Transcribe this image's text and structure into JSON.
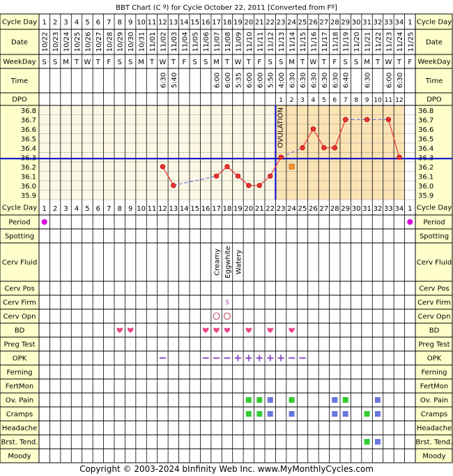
{
  "title": "BBT Chart (C º) for Cycle October 22, 2011  [Converted from Fº]",
  "footer": "Copyright © 2003-2024 bInfinity Web Inc.      www.MyMonthlyCycles.com",
  "colors": {
    "background": "#ffffcc",
    "label_bg": "#ffffcc",
    "pre_ovulation_band": "#fdf8e6",
    "post_ovulation_band": "#fce3b4",
    "line": "#ee3333",
    "coverline": "#0000cc",
    "dashed": "#6677dd",
    "heart": "#ee4488",
    "period": "#dd00dd",
    "opk": "#8844cc",
    "green": "#33cc33",
    "blue": "#6677dd"
  },
  "rows": {
    "cycle_day": "Cycle Day",
    "date": "Date",
    "weekday": "WeekDay",
    "time": "Time",
    "dpo": "DPO",
    "period": "Period",
    "spotting": "Spotting",
    "cerv_fluid": "Cerv Fluid",
    "cerv_pos": "Cerv Pos",
    "cerv_firm": "Cerv Firm",
    "cerv_opn": "Cerv Opn",
    "bd": "BD",
    "preg_test": "Preg Test",
    "opk": "OPK",
    "ferning": "Ferning",
    "fertmon": "FertMon",
    "ov_pain": "Ov. Pain",
    "cramps": "Cramps",
    "headache": "Headache",
    "brst_tend": "Brst. Tend.",
    "moody": "Moody"
  },
  "chart_data": {
    "type": "line",
    "ovulation_label": "OVULATION",
    "ovulation_day": 22,
    "coverline": 36.25,
    "y_ticks": [
      "36.8",
      "36.7",
      "36.6",
      "36.5",
      "36.4",
      "36.3",
      "36.2",
      "36.1",
      "36.0",
      "35.9"
    ],
    "ylim": [
      35.9,
      36.8
    ],
    "cycle_days": [
      "1",
      "2",
      "3",
      "4",
      "5",
      "6",
      "7",
      "8",
      "9",
      "10",
      "11",
      "12",
      "13",
      "14",
      "15",
      "16",
      "17",
      "18",
      "19",
      "20",
      "21",
      "22",
      "23",
      "24",
      "25",
      "26",
      "27",
      "28",
      "29",
      "30",
      "31",
      "32",
      "33",
      "34",
      "1"
    ],
    "dates": [
      "10/22",
      "10/23",
      "10/24",
      "10/25",
      "10/26",
      "10/27",
      "10/28",
      "10/29",
      "10/30",
      "10/31",
      "11/01",
      "11/02",
      "11/03",
      "11/04",
      "11/05",
      "11/06",
      "11/07",
      "11/08",
      "11/09",
      "11/10",
      "11/11",
      "11/12",
      "11/13",
      "11/14",
      "11/15",
      "11/16",
      "11/17",
      "11/18",
      "11/19",
      "11/20",
      "11/21",
      "11/22",
      "11/23",
      "11/24",
      "11/25"
    ],
    "weekdays": [
      "S",
      "S",
      "M",
      "T",
      "W",
      "T",
      "F",
      "S",
      "S",
      "M",
      "T",
      "W",
      "T",
      "F",
      "S",
      "S",
      "M",
      "T",
      "W",
      "T",
      "F",
      "S",
      "S",
      "M",
      "T",
      "W",
      "T",
      "F",
      "S",
      "S",
      "M",
      "T",
      "W",
      "T",
      "F"
    ],
    "times": [
      "",
      "",
      "",
      "",
      "",
      "",
      "",
      "",
      "",
      "",
      "",
      "6:30",
      "5:40",
      "",
      "",
      "",
      "6:00",
      "6:00",
      "5:35",
      "6:00",
      "6:00",
      "5:50",
      "4:00",
      "6:30",
      "6:30",
      "6:30",
      "6:30",
      "6:30",
      "6:40",
      "",
      "6:30",
      "",
      "6:00",
      "6:30",
      ""
    ],
    "dpo": [
      "",
      "",
      "",
      "",
      "",
      "",
      "",
      "",
      "",
      "",
      "",
      "",
      "",
      "",
      "",
      "",
      "",
      "",
      "",
      "",
      "",
      "",
      "1",
      "2",
      "3",
      "4",
      "5",
      "6",
      "7",
      "8",
      "9",
      "10",
      "11",
      "12",
      ""
    ],
    "temps": [
      null,
      null,
      null,
      null,
      null,
      null,
      null,
      null,
      null,
      null,
      null,
      36.2,
      36.0,
      null,
      null,
      null,
      36.1,
      36.2,
      36.1,
      36.0,
      36.0,
      36.1,
      36.3,
      null,
      36.4,
      36.6,
      36.4,
      36.4,
      36.7,
      null,
      36.7,
      null,
      36.7,
      36.3,
      null
    ],
    "open_square": {
      "day": 24,
      "temp": 36.2
    },
    "period_days": [
      1,
      35
    ],
    "cerv_fluid": [
      {
        "day": 17,
        "label": "Creamy"
      },
      {
        "day": 18,
        "label": "Eggwhite"
      },
      {
        "day": 19,
        "label": "Watery"
      }
    ],
    "cerv_firm": [
      {
        "day": 18,
        "label": "S"
      }
    ],
    "cerv_opn_days": [
      17,
      18
    ],
    "bd_days": [
      8,
      9,
      16,
      17,
      18,
      20,
      22,
      24
    ],
    "opk": [
      {
        "day": 12,
        "v": "-"
      },
      {
        "day": 16,
        "v": "-"
      },
      {
        "day": 17,
        "v": "-"
      },
      {
        "day": 18,
        "v": "-"
      },
      {
        "day": 19,
        "v": "+"
      },
      {
        "day": 20,
        "v": "+"
      },
      {
        "day": 21,
        "v": "+"
      },
      {
        "day": 22,
        "v": "+"
      },
      {
        "day": 23,
        "v": "+"
      },
      {
        "day": 24,
        "v": "-"
      },
      {
        "day": 25,
        "v": "-"
      }
    ],
    "ov_pain": [
      {
        "day": 20,
        "c": "green"
      },
      {
        "day": 21,
        "c": "green"
      },
      {
        "day": 22,
        "c": "blue"
      },
      {
        "day": 24,
        "c": "green"
      },
      {
        "day": 28,
        "c": "blue"
      },
      {
        "day": 29,
        "c": "green"
      },
      {
        "day": 32,
        "c": "blue"
      }
    ],
    "cramps": [
      {
        "day": 20,
        "c": "green"
      },
      {
        "day": 21,
        "c": "green"
      },
      {
        "day": 22,
        "c": "blue"
      },
      {
        "day": 24,
        "c": "blue"
      },
      {
        "day": 28,
        "c": "blue"
      },
      {
        "day": 29,
        "c": "blue"
      },
      {
        "day": 31,
        "c": "green"
      },
      {
        "day": 32,
        "c": "blue"
      }
    ],
    "brst_tend": [
      {
        "day": 31,
        "c": "green"
      },
      {
        "day": 32,
        "c": "blue"
      }
    ]
  }
}
